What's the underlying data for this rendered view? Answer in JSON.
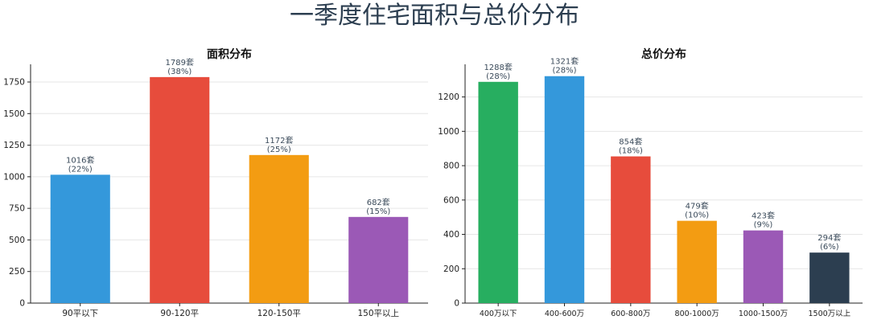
{
  "title": "一季度住宅面积与总价分布",
  "chart_data": [
    {
      "type": "bar",
      "title": "面积分布",
      "categories": [
        "90平以下",
        "90-120平",
        "120-150平",
        "150平以上"
      ],
      "values": [
        1016,
        1789,
        1172,
        682
      ],
      "data_labels": [
        [
          "1016套",
          "(22%)"
        ],
        [
          "1789套",
          "(38%)"
        ],
        [
          "1172套",
          "(25%)"
        ],
        [
          "682套",
          "(15%)"
        ]
      ],
      "colors": [
        "#3498db",
        "#e74c3c",
        "#f39c12",
        "#9b59b6"
      ],
      "ylim": [
        0,
        1890
      ],
      "yticks": [
        0,
        250,
        500,
        750,
        1000,
        1250,
        1500,
        1750
      ],
      "grid": true,
      "xlabel": "",
      "ylabel": ""
    },
    {
      "type": "bar",
      "title": "总价分布",
      "categories": [
        "400万以下",
        "400-600万",
        "600-800万",
        "800-1000万",
        "1000-1500万",
        "1500万以上"
      ],
      "values": [
        1288,
        1321,
        854,
        479,
        423,
        294
      ],
      "data_labels": [
        [
          "1288套",
          "(28%)"
        ],
        [
          "1321套",
          "(28%)"
        ],
        [
          "854套",
          "(18%)"
        ],
        [
          "479套",
          "(10%)"
        ],
        [
          "423套",
          "(9%)"
        ],
        [
          "294套",
          "(6%)"
        ]
      ],
      "colors": [
        "#27ae60",
        "#3498db",
        "#e74c3c",
        "#f39c12",
        "#9b59b6",
        "#2c3e50"
      ],
      "ylim": [
        0,
        1390
      ],
      "yticks": [
        0,
        200,
        400,
        600,
        800,
        1000,
        1200
      ],
      "grid": true,
      "xlabel": "",
      "ylabel": ""
    }
  ]
}
